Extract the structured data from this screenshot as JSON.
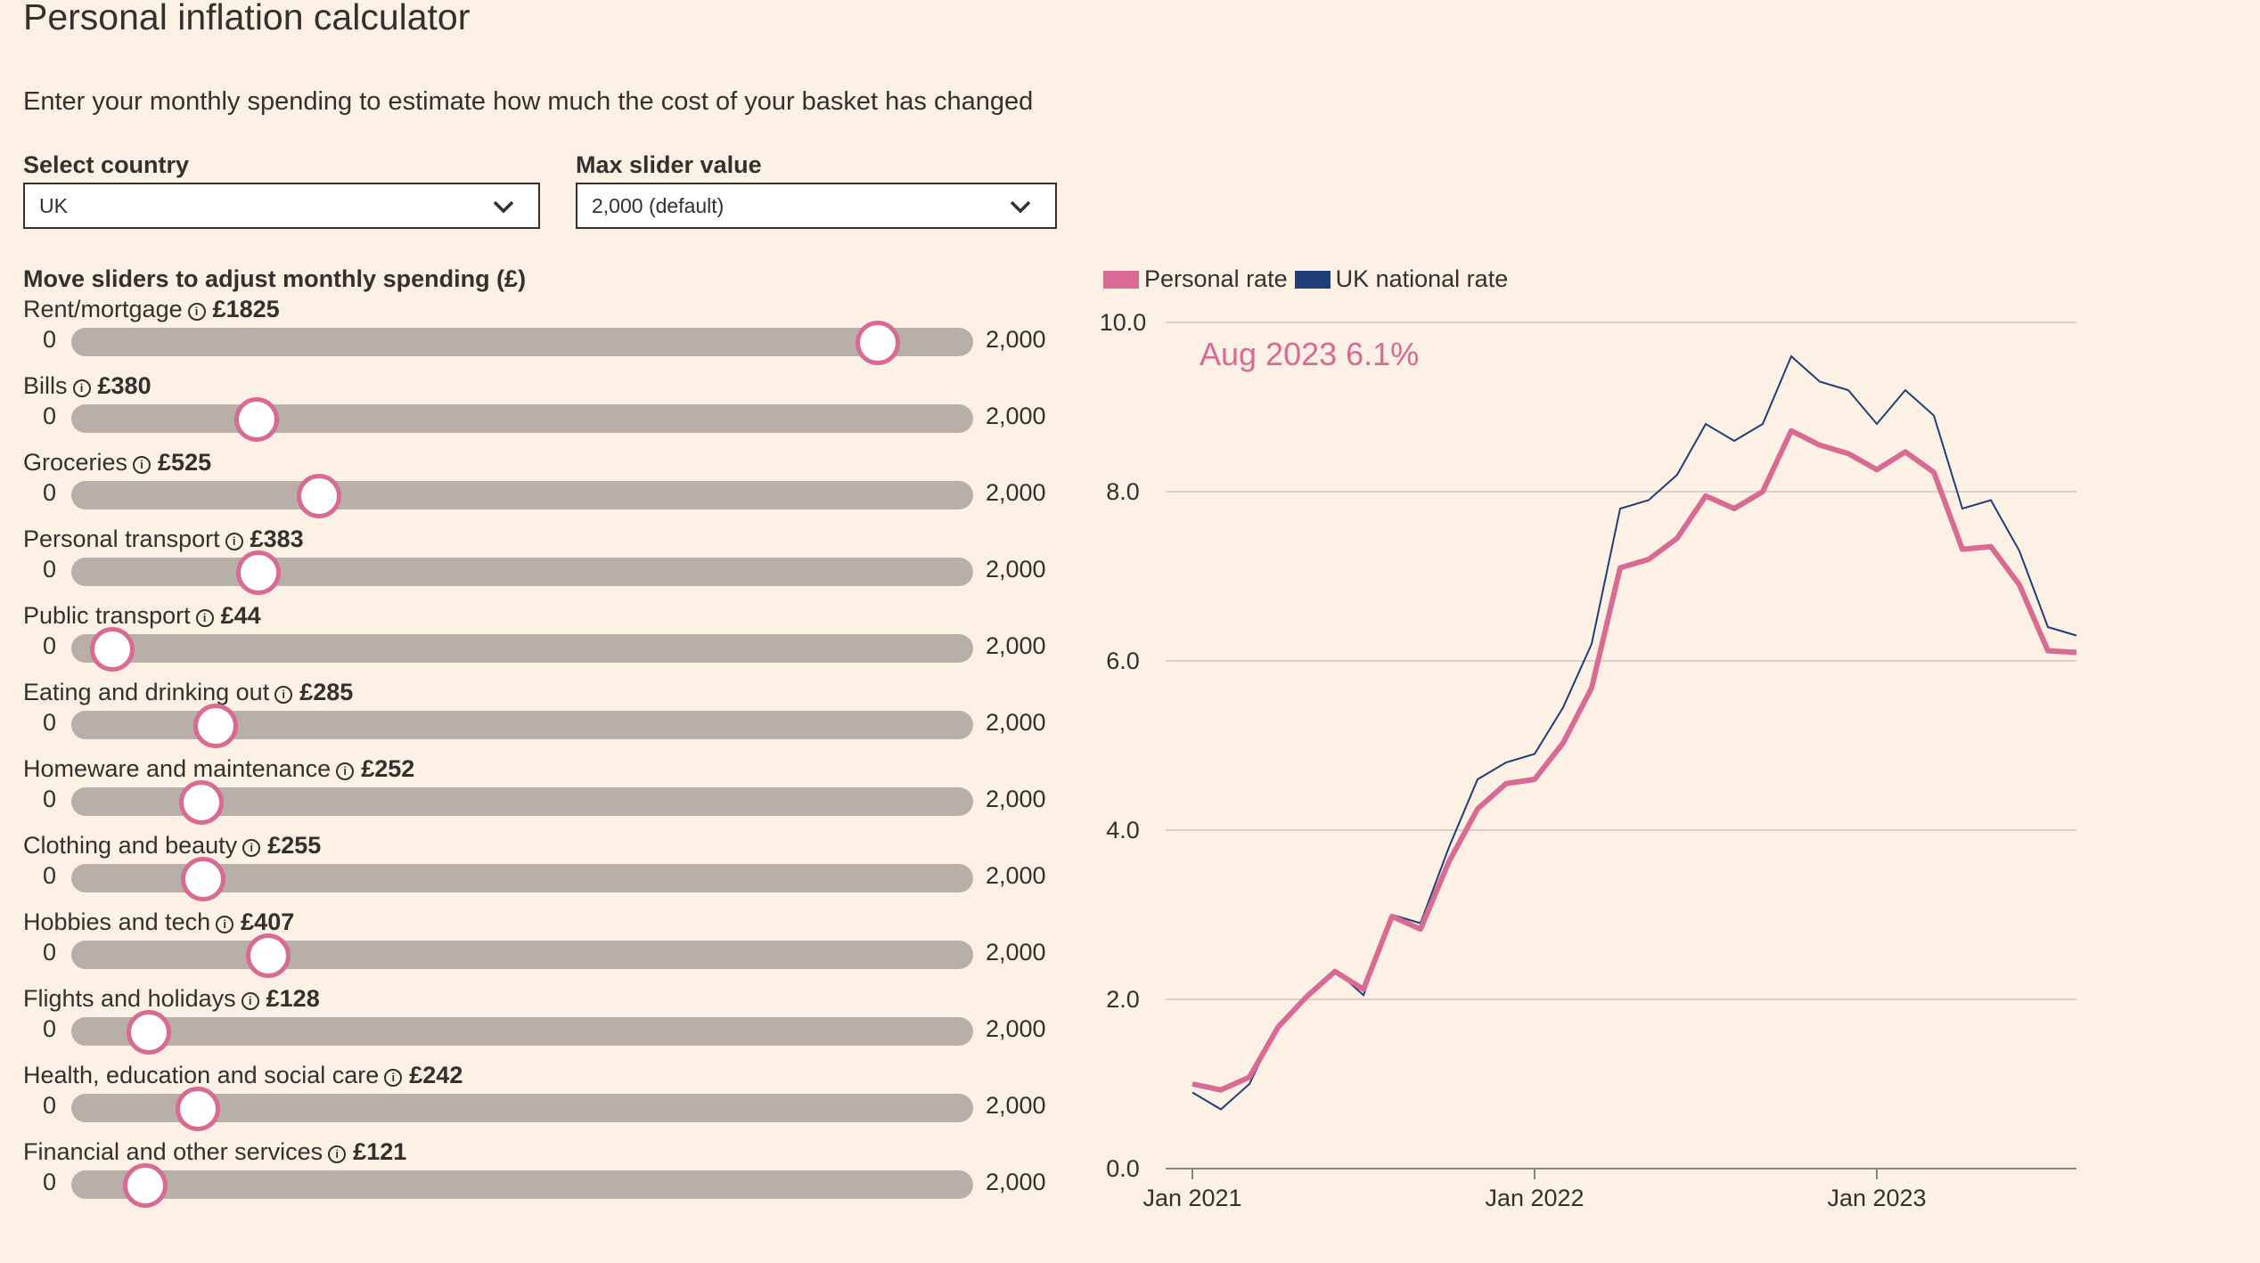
{
  "header": {
    "title": "Personal inflation calculator",
    "subtitle": "Enter your monthly spending to estimate how much the cost of your basket has changed"
  },
  "controls": {
    "country_label": "Select country",
    "country_value": "UK",
    "max_label": "Max slider value",
    "max_value": "2,000 (default)"
  },
  "sliders": {
    "heading": "Move sliders to adjust monthly spending (£)",
    "min_label": "0",
    "max_label": "2,000",
    "max": 2000,
    "items": [
      {
        "label": "Rent/mortgage",
        "amount": "£1825",
        "value": 1825
      },
      {
        "label": "Bills",
        "amount": "£380",
        "value": 380
      },
      {
        "label": "Groceries",
        "amount": "£525",
        "value": 525
      },
      {
        "label": "Personal transport",
        "amount": "£383",
        "value": 383
      },
      {
        "label": "Public transport",
        "amount": "£44",
        "value": 44
      },
      {
        "label": "Eating and drinking out",
        "amount": "£285",
        "value": 285
      },
      {
        "label": "Homeware and maintenance",
        "amount": "£252",
        "value": 252
      },
      {
        "label": "Clothing and beauty",
        "amount": "£255",
        "value": 255
      },
      {
        "label": "Hobbies and tech",
        "amount": "£407",
        "value": 407
      },
      {
        "label": "Flights and holidays",
        "amount": "£128",
        "value": 128
      },
      {
        "label": "Health, education and social care",
        "amount": "£242",
        "value": 242
      },
      {
        "label": "Financial and other services",
        "amount": "£121",
        "value": 121
      }
    ]
  },
  "colors": {
    "personal": "#d86a94",
    "national": "#1e3f78",
    "background": "#fdf0e5",
    "grid": "#cfc6be"
  },
  "chart_data": {
    "type": "line",
    "annotation": "Aug 2023 6.1%",
    "ylim": [
      0,
      10
    ],
    "yticks": [
      "0.0",
      "2.0",
      "4.0",
      "6.0",
      "8.0",
      "10.0"
    ],
    "xticks": [
      "Jan 2021",
      "Jan 2022",
      "Jan 2023"
    ],
    "x": [
      "2021-01",
      "2021-02",
      "2021-03",
      "2021-04",
      "2021-05",
      "2021-06",
      "2021-07",
      "2021-08",
      "2021-09",
      "2021-10",
      "2021-11",
      "2021-12",
      "2022-01",
      "2022-02",
      "2022-03",
      "2022-04",
      "2022-05",
      "2022-06",
      "2022-07",
      "2022-08",
      "2022-09",
      "2022-10",
      "2022-11",
      "2022-12",
      "2023-01",
      "2023-02",
      "2023-03",
      "2023-04",
      "2023-05",
      "2023-06",
      "2023-07",
      "2023-08"
    ],
    "series": [
      {
        "name": "Personal rate",
        "values": [
          1.0,
          0.93,
          1.08,
          1.67,
          2.03,
          2.33,
          2.12,
          2.98,
          2.83,
          3.63,
          4.25,
          4.55,
          4.6,
          5.03,
          5.68,
          7.1,
          7.2,
          7.45,
          7.95,
          7.8,
          8.0,
          8.72,
          8.55,
          8.45,
          8.26,
          8.47,
          8.23,
          7.32,
          7.35,
          6.9,
          6.12,
          6.1
        ]
      },
      {
        "name": "UK national rate",
        "values": [
          0.9,
          0.7,
          1.0,
          1.7,
          2.05,
          2.35,
          2.05,
          3.0,
          2.9,
          3.8,
          4.6,
          4.8,
          4.9,
          5.45,
          6.2,
          7.8,
          7.9,
          8.2,
          8.8,
          8.6,
          8.8,
          9.6,
          9.3,
          9.2,
          8.8,
          9.2,
          8.9,
          7.8,
          7.9,
          7.3,
          6.4,
          6.3
        ]
      }
    ]
  }
}
